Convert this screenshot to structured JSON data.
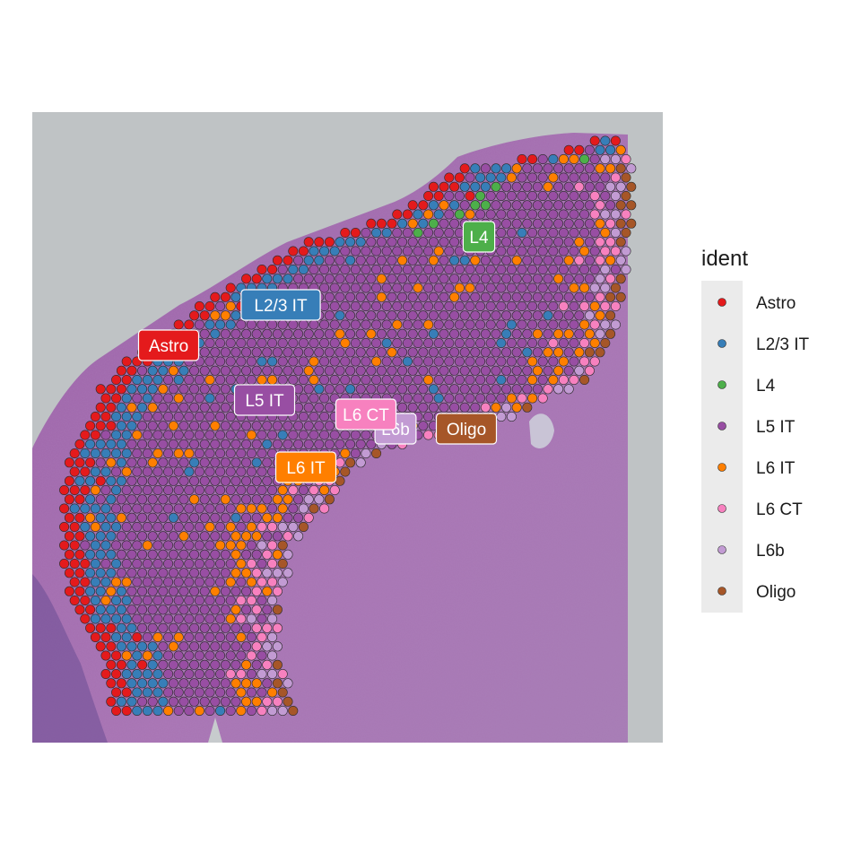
{
  "chart_data": {
    "type": "scatter",
    "title": "",
    "xlabel": "",
    "ylabel": "",
    "grid": false,
    "legend": {
      "title": "ident",
      "position": "right",
      "entries": [
        "Astro",
        "L2/3 IT",
        "L4",
        "L5 IT",
        "L6 IT",
        "L6 CT",
        "L6b",
        "Oligo"
      ]
    },
    "colors": {
      "Astro": "#e41a1c",
      "L2/3 IT": "#377eb8",
      "L4": "#4daf4a",
      "L5 IT": "#984ea3",
      "L6 IT": "#ff7f00",
      "L6 CT": "#f781bf",
      "L6b": "#c29bd3",
      "Oligo": "#a65628"
    },
    "cluster_labels": [
      {
        "text": "L4",
        "color": "#4daf4a"
      },
      {
        "text": "L2/3 IT",
        "color": "#377eb8"
      },
      {
        "text": "Astro",
        "color": "#e41a1c"
      },
      {
        "text": "L5 IT",
        "color": "#984ea3"
      },
      {
        "text": "L6 CT",
        "color": "#f781bf"
      },
      {
        "text": "L6b",
        "color": "#c29bd3"
      },
      {
        "text": "Oligo",
        "color": "#a65628"
      },
      {
        "text": "L6 IT",
        "color": "#ff7f00"
      }
    ],
    "background": "H&E tissue section image"
  }
}
